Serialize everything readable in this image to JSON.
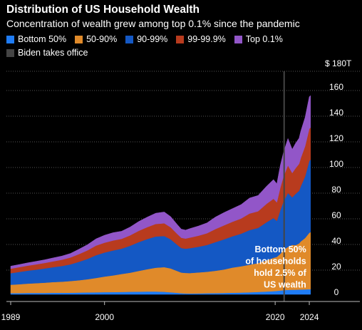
{
  "chart_data": {
    "type": "area",
    "title": "Distribution of US Household Wealth",
    "subtitle": "Concentration of wealth grew among top 0.1% since the pandemic",
    "stacked": true,
    "x": [
      1989,
      1990,
      1991,
      1992,
      1993,
      1994,
      1995,
      1996,
      1997,
      1998,
      1999,
      2000,
      2001,
      2002,
      2003,
      2004,
      2005,
      2006,
      2007,
      2007.75,
      2008.5,
      2009.0,
      2009.5,
      2010,
      2011,
      2012,
      2013,
      2014,
      2015,
      2016,
      2017,
      2018,
      2019,
      2019.8,
      2020.2,
      2020.6,
      2021,
      2021.5,
      2022,
      2022.4,
      2022.8,
      2023,
      2023.5,
      2024,
      2024.15
    ],
    "series": [
      {
        "name": "Bottom 50%",
        "color": "#1f7cf5",
        "values": [
          1.0,
          1.0,
          1.1,
          1.1,
          1.1,
          1.2,
          1.2,
          1.3,
          1.4,
          1.5,
          1.6,
          1.7,
          1.8,
          1.9,
          2.0,
          2.1,
          2.2,
          2.2,
          2.0,
          1.6,
          1.2,
          0.9,
          0.8,
          0.7,
          0.8,
          0.9,
          1.0,
          1.1,
          1.3,
          1.4,
          1.6,
          1.9,
          2.2,
          2.5,
          2.7,
          3.0,
          3.3,
          3.5,
          3.6,
          3.6,
          3.7,
          3.8,
          3.9,
          4.0,
          4.0
        ]
      },
      {
        "name": "50-90%",
        "color": "#e08a2a",
        "values": [
          6.5,
          6.9,
          7.3,
          7.6,
          8.0,
          8.4,
          8.7,
          9.1,
          9.6,
          10.3,
          11.2,
          12.2,
          13.0,
          14.0,
          14.9,
          16.2,
          17.4,
          18.6,
          19.2,
          18.6,
          17.1,
          16.1,
          15.9,
          15.9,
          16.3,
          16.7,
          17.4,
          18.3,
          19.6,
          20.5,
          21.5,
          22.5,
          24.4,
          26.0,
          26.5,
          28.5,
          31.5,
          33.5,
          35.0,
          34.8,
          36.0,
          37.5,
          40.0,
          44.0,
          44.5
        ]
      },
      {
        "name": "90-99%",
        "color": "#1458c4",
        "values": [
          9.0,
          9.6,
          10.1,
          10.6,
          11.1,
          11.6,
          12.2,
          13.0,
          14.4,
          15.8,
          17.7,
          18.7,
          19.4,
          19.7,
          21.0,
          22.4,
          23.5,
          24.3,
          24.3,
          22.7,
          20.4,
          19.1,
          18.9,
          19.4,
          20.0,
          20.9,
          22.3,
          23.5,
          24.4,
          25.4,
          27.0,
          27.4,
          29.7,
          31.0,
          28.0,
          34.0,
          38.0,
          42.0,
          37.0,
          40.0,
          41.0,
          43.0,
          48.0,
          56.0,
          56.5
        ]
      },
      {
        "name": "99-99.9%",
        "color": "#b83b1e",
        "values": [
          3.5,
          3.7,
          3.9,
          4.1,
          4.3,
          4.6,
          4.9,
          5.3,
          6.0,
          6.7,
          7.5,
          7.7,
          7.8,
          7.7,
          8.1,
          8.8,
          9.3,
          9.8,
          9.9,
          9.4,
          8.5,
          8.0,
          7.9,
          8.2,
          8.6,
          9.1,
          10.2,
          10.9,
          11.3,
          11.8,
          12.9,
          13.0,
          14.3,
          15.0,
          14.5,
          17.5,
          19.5,
          21.5,
          19.0,
          20.0,
          21.0,
          22.0,
          23.5,
          25.0,
          25.0
        ]
      },
      {
        "name": "Top 0.1%",
        "color": "#9256c8",
        "values": [
          2.0,
          2.1,
          2.2,
          2.4,
          2.5,
          2.7,
          2.9,
          3.2,
          3.8,
          4.4,
          5.3,
          5.8,
          6.1,
          5.9,
          6.5,
          7.3,
          7.8,
          8.4,
          8.8,
          8.3,
          7.4,
          6.8,
          6.6,
          7.1,
          7.6,
          8.1,
          9.4,
          10.0,
          10.3,
          10.9,
          12.1,
          12.3,
          13.8,
          15.0,
          14.5,
          17.5,
          19.0,
          21.0,
          18.5,
          19.5,
          20.0,
          21.0,
          22.5,
          25.0,
          25.0
        ]
      }
    ],
    "ylabel": "",
    "yunit": "$",
    "ysuffix": "T",
    "ylim": [
      0,
      180
    ],
    "yticks": [
      0,
      20,
      40,
      60,
      80,
      100,
      120,
      140,
      160,
      180
    ],
    "ytick_labels": [
      "0",
      "20",
      "40",
      "60",
      "80",
      "100",
      "120",
      "140",
      "160",
      "$ 180T"
    ],
    "xlim": [
      1988.5,
      2025.5
    ],
    "xticks": [
      1989,
      2000,
      2020,
      2024
    ],
    "xtick_labels": [
      "1989",
      "2000",
      "2020",
      "2024"
    ],
    "grid": true,
    "legend_position": "top-left",
    "event_line": {
      "x": 2021.05,
      "label": "Biden takes office",
      "color": "#444444"
    },
    "annotation": {
      "lines": [
        "Bottom 50%",
        "of households",
        "hold 2.5% of",
        "US wealth"
      ],
      "x": 2019.8
    }
  }
}
